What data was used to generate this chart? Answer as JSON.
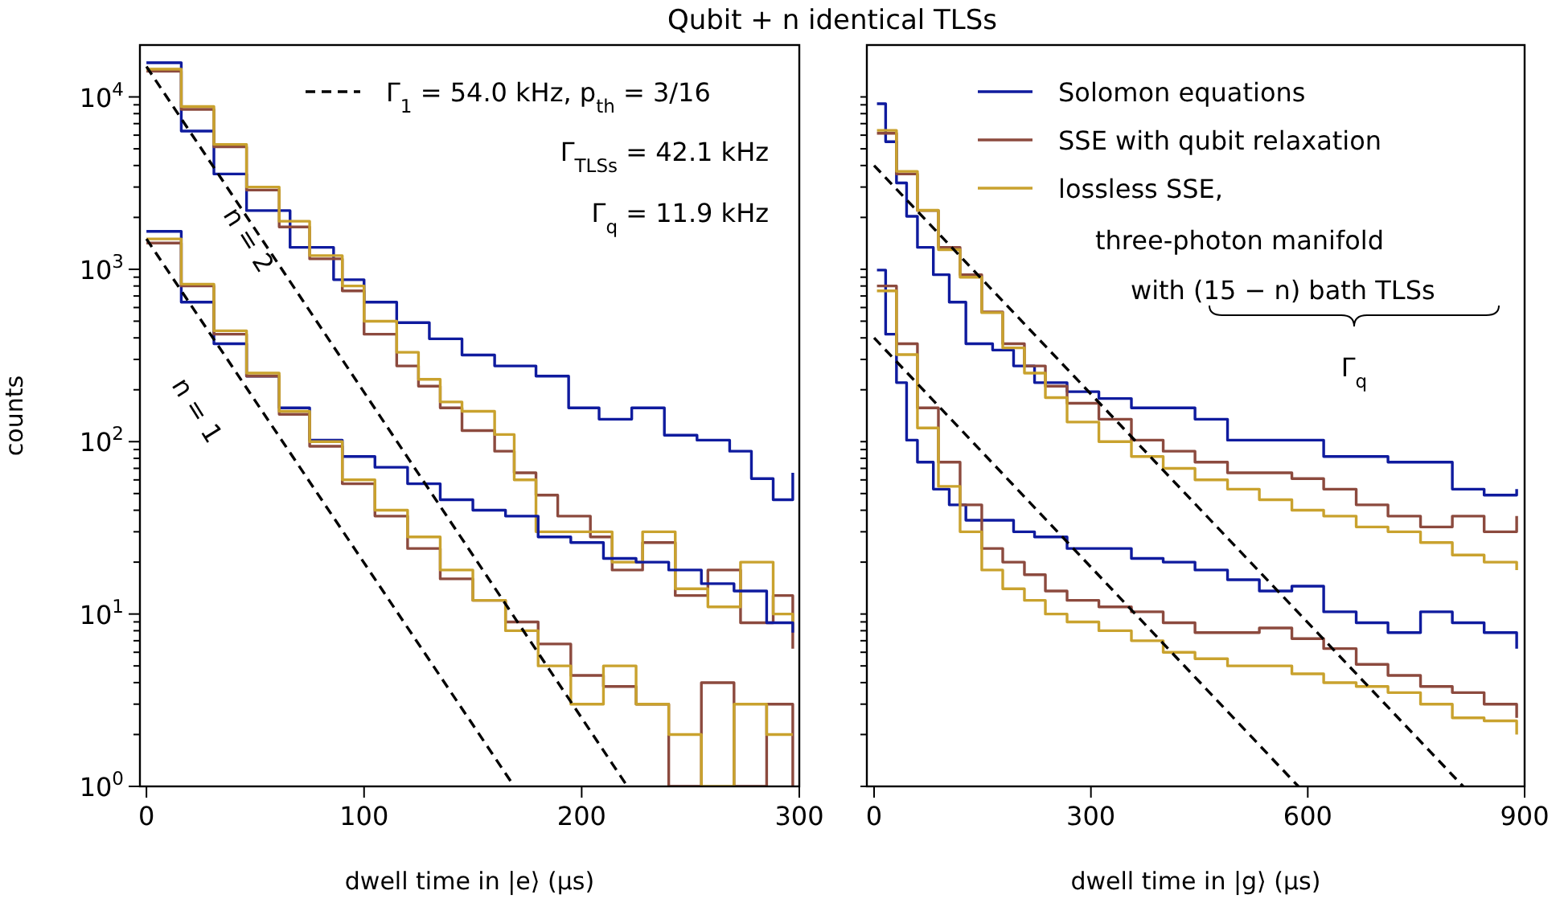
{
  "chart_data": [
    {
      "type": "step",
      "title": "Qubit + n identical TLSs",
      "xlabel": "dwell time in |e⟩ (μs)",
      "ylabel": "counts",
      "log": "y",
      "legend": "top right",
      "xlim": [
        -3,
        300
      ],
      "ylim": [
        1,
        20000
      ],
      "xticks": [
        0,
        100,
        200,
        300
      ],
      "yticks": [
        {
          "value": 1,
          "label": "10$^{0}$"
        },
        {
          "value": 2,
          "label": null
        },
        {
          "value": 3,
          "label": null
        },
        {
          "value": 4,
          "label": null
        },
        {
          "value": 5,
          "label": null
        },
        {
          "value": 6,
          "label": null
        },
        {
          "value": 7,
          "label": null
        },
        {
          "value": 8,
          "label": null
        },
        {
          "value": 9,
          "label": null
        },
        {
          "value": 10,
          "label": "10$^{1}$"
        },
        {
          "value": 20,
          "label": null
        },
        {
          "value": 30,
          "label": null
        },
        {
          "value": 40,
          "label": null
        },
        {
          "value": 50,
          "label": null
        },
        {
          "value": 60,
          "label": null
        },
        {
          "value": 70,
          "label": null
        },
        {
          "value": 80,
          "label": null
        },
        {
          "value": 90,
          "label": null
        },
        {
          "value": 100,
          "label": "10$^{2}$"
        },
        {
          "value": 200,
          "label": null
        },
        {
          "value": 300,
          "label": null
        },
        {
          "value": 400,
          "label": null
        },
        {
          "value": 500,
          "label": null
        },
        {
          "value": 600,
          "label": null
        },
        {
          "value": 700,
          "label": null
        },
        {
          "value": 800,
          "label": null
        },
        {
          "value": 900,
          "label": null
        },
        {
          "value": 1000,
          "label": "10$^{3}$"
        },
        {
          "value": 2000,
          "label": null
        },
        {
          "value": 3000,
          "label": null
        },
        {
          "value": 4000,
          "label": null
        },
        {
          "value": 5000,
          "label": null
        },
        {
          "value": 6000,
          "label": null
        },
        {
          "value": 7000,
          "label": null
        },
        {
          "value": 8000,
          "label": null
        },
        {
          "value": 9000,
          "label": null
        },
        {
          "value": 10000,
          "label": "10$^{4}$"
        }
      ],
      "annotations": [
        "Γ$_{TLSs}$ = 42.1 kHz",
        "Γ$_{q}$ = 11.9 kHz",
        "n = 2",
        "n = 1"
      ],
      "series": [
        {
          "color": "#0f1b9e",
          "x": [
            0,
            16,
            31,
            46,
            66,
            86,
            100,
            115,
            130,
            145,
            160,
            179,
            194,
            208,
            223,
            238,
            253,
            268,
            278,
            288,
            297
          ],
          "values": [
            15800,
            6340,
            3570,
            2190,
            1340,
            870,
            645,
            490,
            395,
            318,
            275,
            240,
            157,
            135,
            157,
            109,
            102,
            88,
            61,
            46,
            66
          ]
        },
        {
          "color": "#8c4a3e",
          "x": [
            0,
            16,
            31,
            46,
            61,
            75,
            90,
            100,
            115,
            125,
            135,
            145,
            160,
            169,
            179,
            189,
            204,
            214,
            228,
            243,
            258,
            273,
            288,
            297
          ],
          "values": [
            14100,
            8470,
            5130,
            2880,
            1760,
            1150,
            750,
            420,
            275,
            210,
            157,
            116,
            88,
            66,
            49,
            37,
            28,
            18,
            26,
            12.8,
            18,
            8.9,
            12.8,
            6.3
          ]
        },
        {
          "color": "#c9a22e",
          "x": [
            0,
            16,
            31,
            46,
            61,
            75,
            90,
            100,
            115,
            125,
            135,
            145,
            160,
            169,
            179,
            189,
            204,
            214,
            228,
            243,
            258,
            273,
            288,
            297
          ],
          "values": [
            14500,
            8800,
            5300,
            3000,
            1900,
            1200,
            800,
            500,
            330,
            230,
            170,
            150,
            110,
            60,
            30,
            30,
            30,
            20,
            30,
            14,
            11,
            20,
            10,
            8
          ]
        },
        {
          "color": "#0f1b9e",
          "x": [
            0,
            16,
            31,
            46,
            61,
            75,
            90,
            105,
            120,
            135,
            150,
            165,
            180,
            195,
            210,
            225,
            240,
            255,
            270,
            285,
            297
          ],
          "values": [
            1660,
            645,
            370,
            240,
            157,
            102,
            82,
            71,
            57,
            46,
            40,
            37,
            28,
            26,
            21,
            20,
            18,
            15,
            13.6,
            8.9,
            7.8
          ]
        },
        {
          "color": "#8c4a3e",
          "x": [
            0,
            16,
            31,
            46,
            61,
            75,
            90,
            105,
            120,
            135,
            150,
            165,
            180,
            195,
            210,
            225,
            240,
            255,
            270,
            285,
            297
          ],
          "values": [
            1420,
            800,
            420,
            240,
            144,
            94,
            57,
            37,
            24,
            16,
            12,
            9,
            6.7,
            4.4,
            3.8,
            3,
            1,
            4,
            1,
            3,
            1
          ]
        },
        {
          "color": "#c9a22e",
          "x": [
            0,
            16,
            31,
            46,
            61,
            75,
            90,
            105,
            120,
            135,
            150,
            165,
            180,
            195,
            210,
            225,
            240,
            255,
            270,
            285,
            297
          ],
          "values": [
            1500,
            820,
            440,
            250,
            150,
            100,
            60,
            40,
            28,
            18,
            12,
            8,
            5,
            3,
            5,
            3,
            2,
            1,
            3,
            2,
            2
          ]
        },
        {
          "type": "line",
          "name": "Γ$_{1}$ = 54.0 kHz, p$_{th}$ = 3/16",
          "color": "#000000",
          "line_style": "dashed",
          "x": [
            0,
            221
          ],
          "values": [
            15000,
            1
          ]
        },
        {
          "type": "line",
          "color": "#000000",
          "line_style": "dashed",
          "x": [
            0,
            169
          ],
          "values": [
            1500,
            1
          ]
        }
      ]
    },
    {
      "type": "step",
      "xlabel": "dwell time in |g⟩ (μs)",
      "log": "y",
      "legend": "top right",
      "tick_labels": "x",
      "xlim": [
        -10,
        900
      ],
      "ylim": [
        1,
        20000
      ],
      "xticks": [
        0,
        300,
        600,
        900
      ],
      "yticks": [
        {
          "value": 1,
          "label": null
        },
        {
          "value": 2,
          "label": null
        },
        {
          "value": 3,
          "label": null
        },
        {
          "value": 4,
          "label": null
        },
        {
          "value": 5,
          "label": null
        },
        {
          "value": 6,
          "label": null
        },
        {
          "value": 7,
          "label": null
        },
        {
          "value": 8,
          "label": null
        },
        {
          "value": 9,
          "label": null
        },
        {
          "value": 10,
          "label": null
        },
        {
          "value": 20,
          "label": null
        },
        {
          "value": 30,
          "label": null
        },
        {
          "value": 40,
          "label": null
        },
        {
          "value": 50,
          "label": null
        },
        {
          "value": 60,
          "label": null
        },
        {
          "value": 70,
          "label": null
        },
        {
          "value": 80,
          "label": null
        },
        {
          "value": 90,
          "label": null
        },
        {
          "value": 100,
          "label": null
        },
        {
          "value": 200,
          "label": null
        },
        {
          "value": 300,
          "label": null
        },
        {
          "value": 400,
          "label": null
        },
        {
          "value": 500,
          "label": null
        },
        {
          "value": 600,
          "label": null
        },
        {
          "value": 700,
          "label": null
        },
        {
          "value": 800,
          "label": null
        },
        {
          "value": 900,
          "label": null
        },
        {
          "value": 1000,
          "label": null
        },
        {
          "value": 2000,
          "label": null
        },
        {
          "value": 3000,
          "label": null
        },
        {
          "value": 4000,
          "label": null
        },
        {
          "value": 5000,
          "label": null
        },
        {
          "value": 6000,
          "label": null
        },
        {
          "value": 7000,
          "label": null
        },
        {
          "value": 8000,
          "label": null
        },
        {
          "value": 9000,
          "label": null
        },
        {
          "value": 10000,
          "label": null
        }
      ],
      "annotations": [
        "three-photon manifold",
        "with (15 − n) bath TLSs",
        "Γ$_{q}$"
      ],
      "series": [
        {
          "name": "Solomon equations",
          "color": "#0f1b9e",
          "x": [
            4,
            16,
            31,
            45,
            60,
            82,
            104,
            127,
            164,
            193,
            222,
            267,
            311,
            356,
            400,
            444,
            489,
            533,
            578,
            622,
            667,
            711,
            756,
            800,
            844,
            889
          ],
          "values": [
            9130,
            5500,
            3170,
            2030,
            1340,
            930,
            645,
            370,
            340,
            275,
            220,
            195,
            178,
            157,
            157,
            135,
            102,
            102,
            102,
            82,
            82,
            76,
            76,
            53,
            49,
            53
          ]
        },
        {
          "name": "SSE with qubit relaxation",
          "color": "#8c4a3e",
          "x": [
            4,
            31,
            60,
            89,
            119,
            149,
            178,
            208,
            237,
            267,
            311,
            356,
            400,
            444,
            489,
            533,
            578,
            622,
            667,
            711,
            756,
            800,
            844,
            889
          ],
          "values": [
            6150,
            3570,
            2190,
            1340,
            930,
            565,
            370,
            275,
            210,
            167,
            135,
            102,
            88,
            76,
            66,
            66,
            61,
            53,
            43,
            37,
            32,
            37,
            30,
            37
          ]
        },
        {
          "name": "lossless SSE,",
          "color": "#c9a22e",
          "x": [
            4,
            31,
            60,
            89,
            119,
            149,
            178,
            208,
            237,
            267,
            311,
            356,
            400,
            444,
            489,
            533,
            578,
            622,
            667,
            711,
            756,
            800,
            844,
            889
          ],
          "values": [
            6400,
            3700,
            2200,
            1300,
            900,
            560,
            350,
            250,
            180,
            130,
            100,
            82,
            70,
            60,
            53,
            46,
            40,
            37,
            32,
            30,
            26,
            22,
            20,
            18
          ]
        },
        {
          "color": "#0f1b9e",
          "x": [
            4,
            16,
            31,
            45,
            60,
            82,
            104,
            127,
            164,
            193,
            222,
            267,
            311,
            356,
            400,
            444,
            489,
            533,
            578,
            622,
            667,
            711,
            756,
            800,
            844,
            889
          ],
          "values": [
            990,
            420,
            220,
            102,
            76,
            53,
            43,
            35,
            35,
            30,
            28,
            24,
            24,
            21,
            20,
            18,
            15.8,
            13.6,
            14.5,
            10.3,
            8.9,
            7.8,
            10.3,
            8.9,
            7.8,
            6.3
          ]
        },
        {
          "color": "#8c4a3e",
          "x": [
            4,
            31,
            60,
            89,
            119,
            149,
            178,
            208,
            237,
            267,
            311,
            356,
            400,
            444,
            489,
            533,
            578,
            622,
            667,
            711,
            756,
            800,
            844,
            889
          ],
          "values": [
            800,
            370,
            157,
            76,
            43,
            24,
            20,
            16.9,
            13.6,
            12,
            11,
            10.3,
            8.9,
            7.8,
            7.8,
            8.3,
            7.2,
            6.3,
            5.1,
            4.4,
            3.8,
            3.5,
            3,
            2.5
          ]
        },
        {
          "color": "#c9a22e",
          "x": [
            4,
            31,
            60,
            89,
            119,
            149,
            178,
            208,
            237,
            267,
            311,
            356,
            400,
            444,
            489,
            533,
            578,
            622,
            667,
            711,
            756,
            800,
            844,
            889
          ],
          "values": [
            750,
            320,
            120,
            55,
            30,
            18,
            14,
            12,
            10,
            9,
            8,
            7,
            6,
            5.5,
            5,
            5,
            4.5,
            4,
            3.8,
            3.5,
            3,
            2.5,
            2.4,
            2
          ]
        },
        {
          "type": "line",
          "color": "#000000",
          "line_style": "dashed",
          "x": [
            0,
            815
          ],
          "values": [
            4000,
            1
          ]
        },
        {
          "type": "line",
          "color": "#000000",
          "line_style": "dashed",
          "x": [
            0,
            587
          ],
          "values": [
            400,
            1
          ]
        }
      ]
    }
  ]
}
